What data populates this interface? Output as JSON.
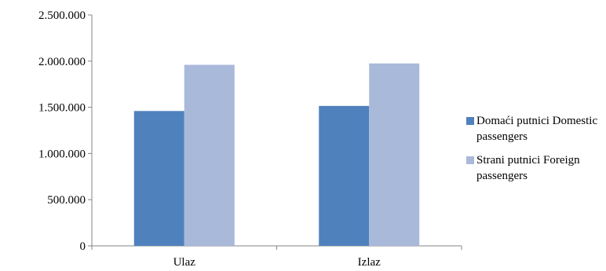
{
  "chart_data": {
    "type": "bar",
    "title": "",
    "xlabel": "",
    "ylabel": "",
    "categories": [
      "Ulaz",
      "Izlaz"
    ],
    "series": [
      {
        "name": "Domaći putnici Domestic passengers",
        "values": [
          1460000,
          1515000
        ],
        "color": "#4f81bd"
      },
      {
        "name": "Strani putnici Foreign passengers",
        "values": [
          1960000,
          1975000
        ],
        "color": "#a9b9da"
      }
    ],
    "ylim": [
      0,
      2500000
    ],
    "yticks": [
      0,
      500000,
      1000000,
      1500000,
      2000000,
      2500000
    ],
    "ytick_labels": [
      "0",
      "500.000",
      "1.000.000",
      "1.500.000",
      "2.000.000",
      "2.500.000"
    ],
    "grid": false,
    "legend_position": "right"
  }
}
